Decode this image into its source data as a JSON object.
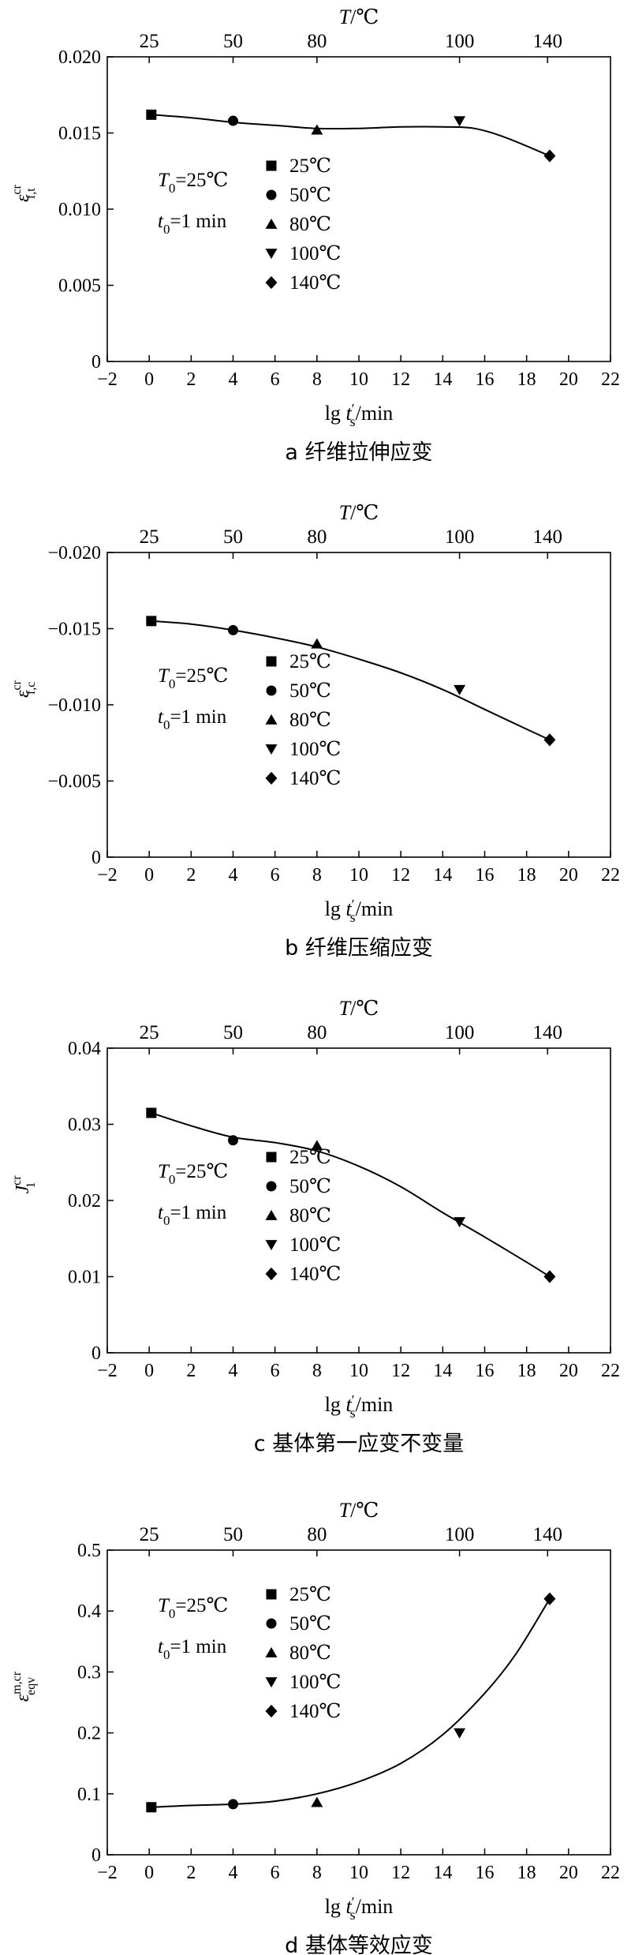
{
  "chart_data": [
    {
      "type": "scatter",
      "caption": "a 纤维拉伸应变",
      "ylabel": "ε^cr_f,t",
      "xlabel": "lg t′s/min",
      "top_axis_label": "T/℃",
      "top_ticks": [
        {
          "x": 0,
          "label": "25"
        },
        {
          "x": 4,
          "label": "50"
        },
        {
          "x": 8,
          "label": "80"
        },
        {
          "x": 14.8,
          "label": "100"
        },
        {
          "x": 19,
          "label": "140"
        }
      ],
      "xlim": [
        -2,
        22
      ],
      "xticks": [
        -2,
        0,
        2,
        4,
        6,
        8,
        10,
        12,
        14,
        16,
        18,
        20,
        22
      ],
      "ylim": [
        0,
        0.02
      ],
      "yticks": [
        "0",
        "0.005",
        "0.010",
        "0.015",
        "0.020"
      ],
      "inverted_y": false,
      "annotation": {
        "line1": "T0=25℃",
        "line2": "t0=1 min"
      },
      "legend": [
        {
          "marker": "square",
          "label": "25℃"
        },
        {
          "marker": "circle",
          "label": "50℃"
        },
        {
          "marker": "triangle-up",
          "label": "80℃"
        },
        {
          "marker": "triangle-down",
          "label": "100℃"
        },
        {
          "marker": "diamond",
          "label": "140℃"
        }
      ],
      "points": [
        {
          "x": 0.1,
          "y": 0.0162,
          "marker": "square"
        },
        {
          "x": 4.0,
          "y": 0.0158,
          "marker": "circle"
        },
        {
          "x": 8.0,
          "y": 0.0152,
          "marker": "triangle-up"
        },
        {
          "x": 14.8,
          "y": 0.0158,
          "marker": "triangle-down"
        },
        {
          "x": 19.1,
          "y": 0.0135,
          "marker": "diamond"
        }
      ],
      "curve": [
        [
          0.1,
          0.0162
        ],
        [
          2,
          0.016
        ],
        [
          4,
          0.0157
        ],
        [
          6,
          0.0155
        ],
        [
          8,
          0.0153
        ],
        [
          10,
          0.0153
        ],
        [
          12,
          0.0154
        ],
        [
          14,
          0.0154
        ],
        [
          15.5,
          0.0153
        ],
        [
          17,
          0.0147
        ],
        [
          19.1,
          0.0135
        ]
      ]
    },
    {
      "type": "scatter",
      "caption": "b 纤维压缩应变",
      "ylabel": "ε^cr_f,c",
      "xlabel": "lg t′s/min",
      "top_axis_label": "T/℃",
      "top_ticks": [
        {
          "x": 0,
          "label": "25"
        },
        {
          "x": 4,
          "label": "50"
        },
        {
          "x": 8,
          "label": "80"
        },
        {
          "x": 14.8,
          "label": "100"
        },
        {
          "x": 19,
          "label": "140"
        }
      ],
      "xlim": [
        -2,
        22
      ],
      "xticks": [
        -2,
        0,
        2,
        4,
        6,
        8,
        10,
        12,
        14,
        16,
        18,
        20,
        22
      ],
      "ylim": [
        0,
        -0.02
      ],
      "yticks": [
        "0",
        "−0.005",
        "−0.010",
        "−0.015",
        "−0.020"
      ],
      "inverted_y": true,
      "annotation": {
        "line1": "T0=25℃",
        "line2": "t0=1 min"
      },
      "legend": [
        {
          "marker": "square",
          "label": "25℃"
        },
        {
          "marker": "circle",
          "label": "50℃"
        },
        {
          "marker": "triangle-up",
          "label": "80℃"
        },
        {
          "marker": "triangle-down",
          "label": "100℃"
        },
        {
          "marker": "diamond",
          "label": "140℃"
        }
      ],
      "points": [
        {
          "x": 0.1,
          "y": -0.0155,
          "marker": "square"
        },
        {
          "x": 4.0,
          "y": -0.0149,
          "marker": "circle"
        },
        {
          "x": 8.0,
          "y": -0.014,
          "marker": "triangle-up"
        },
        {
          "x": 14.8,
          "y": -0.011,
          "marker": "triangle-down"
        },
        {
          "x": 19.1,
          "y": -0.0077,
          "marker": "diamond"
        }
      ],
      "curve": [
        [
          0.1,
          -0.0155
        ],
        [
          2,
          -0.0153
        ],
        [
          4,
          -0.0149
        ],
        [
          6,
          -0.0144
        ],
        [
          8,
          -0.0138
        ],
        [
          10,
          -0.013
        ],
        [
          12,
          -0.0121
        ],
        [
          14,
          -0.011
        ],
        [
          16,
          -0.0097
        ],
        [
          18,
          -0.0084
        ],
        [
          19.1,
          -0.0077
        ]
      ]
    },
    {
      "type": "scatter",
      "caption": "c 基体第一应变不变量",
      "ylabel": "J^cr_1",
      "xlabel": "lg t′s/min",
      "top_axis_label": "T/℃",
      "top_ticks": [
        {
          "x": 0,
          "label": "25"
        },
        {
          "x": 4,
          "label": "50"
        },
        {
          "x": 8,
          "label": "80"
        },
        {
          "x": 14.8,
          "label": "100"
        },
        {
          "x": 19,
          "label": "140"
        }
      ],
      "xlim": [
        -2,
        22
      ],
      "xticks": [
        -2,
        0,
        2,
        4,
        6,
        8,
        10,
        12,
        14,
        16,
        18,
        20,
        22
      ],
      "ylim": [
        0,
        0.04
      ],
      "yticks": [
        "0",
        "0.01",
        "0.02",
        "0.03",
        "0.04"
      ],
      "inverted_y": false,
      "annotation": {
        "line1": "T0=25℃",
        "line2": "t0=1 min"
      },
      "legend": [
        {
          "marker": "square",
          "label": "25℃"
        },
        {
          "marker": "circle",
          "label": "50℃"
        },
        {
          "marker": "triangle-up",
          "label": "80℃"
        },
        {
          "marker": "triangle-down",
          "label": "100℃"
        },
        {
          "marker": "diamond",
          "label": "140℃"
        }
      ],
      "points": [
        {
          "x": 0.1,
          "y": 0.0315,
          "marker": "square"
        },
        {
          "x": 4.0,
          "y": 0.0279,
          "marker": "circle"
        },
        {
          "x": 8.0,
          "y": 0.0272,
          "marker": "triangle-up"
        },
        {
          "x": 14.8,
          "y": 0.0172,
          "marker": "triangle-down"
        },
        {
          "x": 19.1,
          "y": 0.01,
          "marker": "diamond"
        }
      ],
      "curve": [
        [
          0.1,
          0.0315
        ],
        [
          2,
          0.0298
        ],
        [
          4,
          0.0283
        ],
        [
          6,
          0.0276
        ],
        [
          8,
          0.0265
        ],
        [
          10,
          0.0245
        ],
        [
          12,
          0.0218
        ],
        [
          14,
          0.0184
        ],
        [
          16,
          0.0152
        ],
        [
          18,
          0.0119
        ],
        [
          19.1,
          0.01
        ]
      ]
    },
    {
      "type": "scatter",
      "caption": "d 基体等效应变",
      "ylabel": "ε^m,cr_eqv",
      "xlabel": "lg t′s/min",
      "top_axis_label": "T/℃",
      "top_ticks": [
        {
          "x": 0,
          "label": "25"
        },
        {
          "x": 4,
          "label": "50"
        },
        {
          "x": 8,
          "label": "80"
        },
        {
          "x": 14.8,
          "label": "100"
        },
        {
          "x": 19,
          "label": "140"
        }
      ],
      "xlim": [
        -2,
        22
      ],
      "xticks": [
        -2,
        0,
        2,
        4,
        6,
        8,
        10,
        12,
        14,
        16,
        18,
        20,
        22
      ],
      "ylim": [
        0,
        0.5
      ],
      "yticks": [
        "0",
        "0.1",
        "0.2",
        "0.3",
        "0.4",
        "0.5"
      ],
      "inverted_y": false,
      "annotation": {
        "line1": "T0=25℃",
        "line2": "t0=1 min"
      },
      "legend": [
        {
          "marker": "square",
          "label": "25℃"
        },
        {
          "marker": "circle",
          "label": "50℃"
        },
        {
          "marker": "triangle-up",
          "label": "80℃"
        },
        {
          "marker": "triangle-down",
          "label": "100℃"
        },
        {
          "marker": "diamond",
          "label": "140℃"
        }
      ],
      "points": [
        {
          "x": 0.1,
          "y": 0.078,
          "marker": "square"
        },
        {
          "x": 4.0,
          "y": 0.083,
          "marker": "circle"
        },
        {
          "x": 8.0,
          "y": 0.086,
          "marker": "triangle-up"
        },
        {
          "x": 14.8,
          "y": 0.2,
          "marker": "triangle-down"
        },
        {
          "x": 19.1,
          "y": 0.42,
          "marker": "diamond"
        }
      ],
      "curve": [
        [
          0.1,
          0.078
        ],
        [
          2,
          0.081
        ],
        [
          4,
          0.083
        ],
        [
          6,
          0.088
        ],
        [
          8,
          0.1
        ],
        [
          10,
          0.12
        ],
        [
          12,
          0.15
        ],
        [
          14,
          0.197
        ],
        [
          16,
          0.265
        ],
        [
          17.5,
          0.33
        ],
        [
          19.1,
          0.42
        ]
      ]
    }
  ]
}
